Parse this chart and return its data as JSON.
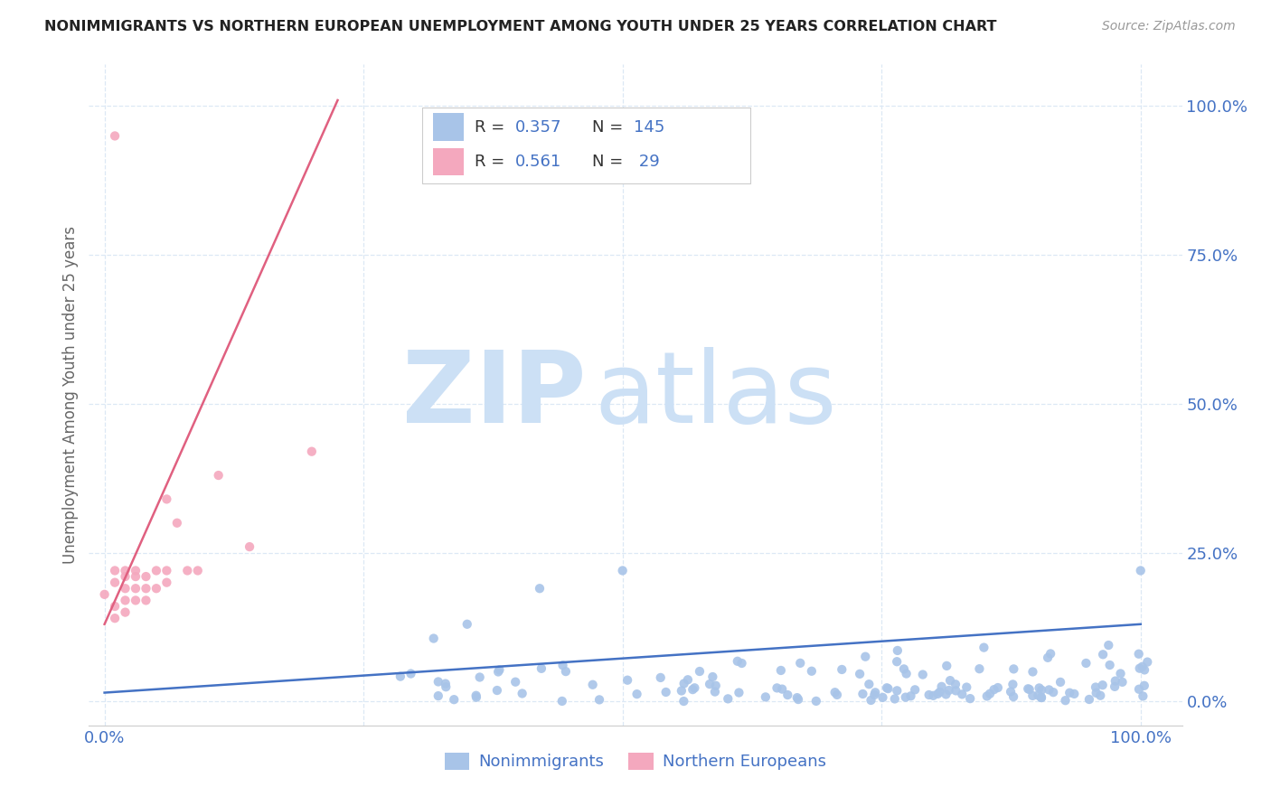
{
  "title": "NONIMMIGRANTS VS NORTHERN EUROPEAN UNEMPLOYMENT AMONG YOUTH UNDER 25 YEARS CORRELATION CHART",
  "source": "Source: ZipAtlas.com",
  "ylabel": "Unemployment Among Youth under 25 years",
  "y_tick_values": [
    0.0,
    0.25,
    0.5,
    0.75,
    1.0
  ],
  "y_tick_labels": [
    "0.0%",
    "25.0%",
    "50.0%",
    "75.0%",
    "100.0%"
  ],
  "x_tick_values": [
    0.0,
    1.0
  ],
  "x_tick_labels": [
    "0.0%",
    "100.0%"
  ],
  "blue_R": 0.357,
  "blue_N": 145,
  "pink_R": 0.561,
  "pink_N": 29,
  "blue_color": "#a8c4e8",
  "pink_color": "#f4a8be",
  "blue_line_color": "#4472c4",
  "pink_line_color": "#e06080",
  "legend_text_color": "#4472c4",
  "watermark_zip": "ZIP",
  "watermark_atlas": "atlas",
  "watermark_color": "#cce0f5",
  "background_color": "#ffffff",
  "grid_color": "#dce8f5",
  "title_color": "#222222",
  "source_color": "#999999",
  "ylabel_color": "#666666",
  "blue_line_x": [
    0.0,
    1.0
  ],
  "blue_line_y": [
    0.015,
    0.13
  ],
  "pink_line_x": [
    0.0,
    0.225
  ],
  "pink_line_y": [
    0.13,
    1.01
  ],
  "xlim": [
    -0.015,
    1.04
  ],
  "ylim": [
    -0.04,
    1.07
  ]
}
